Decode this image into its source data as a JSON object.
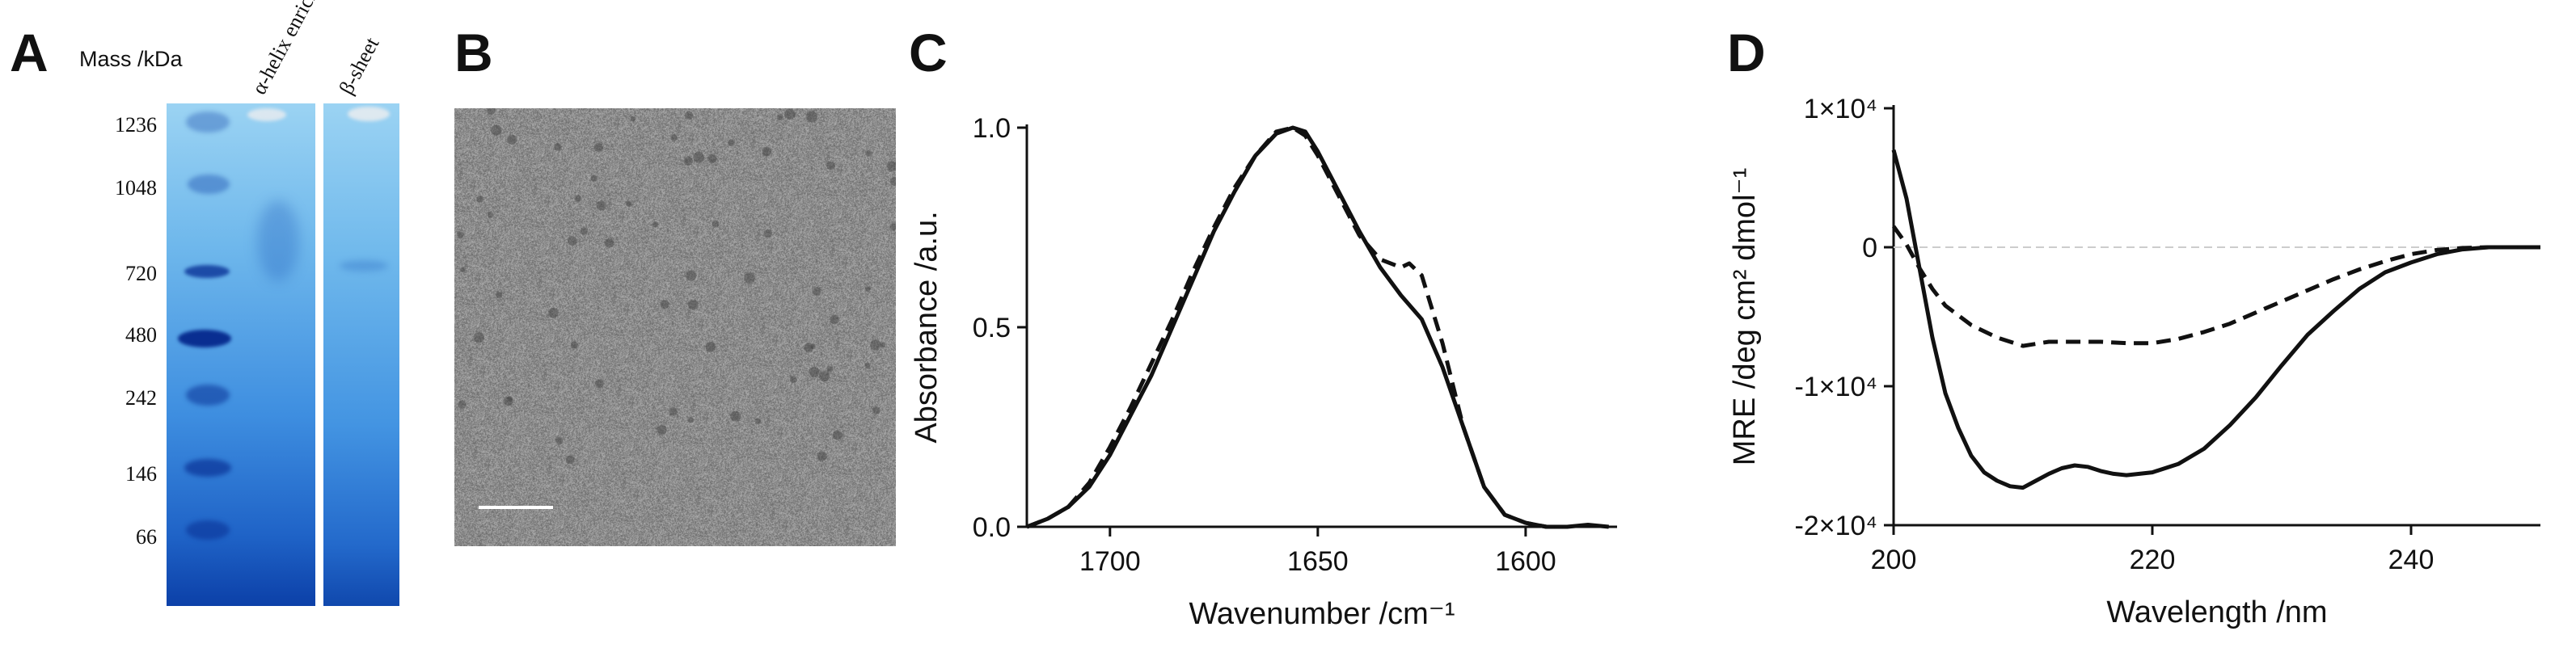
{
  "panels": {
    "a": {
      "letter": "A"
    },
    "b": {
      "letter": "B"
    },
    "c": {
      "letter": "C"
    },
    "d": {
      "letter": "D"
    }
  },
  "gel": {
    "mass_label": "Mass /kDa",
    "markers": [
      "1236",
      "1048",
      "720",
      "480",
      "242",
      "146",
      "66"
    ],
    "lanes": [
      "α-helix enriched",
      "β-sheet"
    ]
  },
  "tem": {
    "has_scale_bar": true
  },
  "chart_data": [
    {
      "panel": "C",
      "type": "line",
      "xlabel": "Wavenumber /cm⁻¹",
      "ylabel": "Absorbance /a.u.",
      "xlim": [
        1720,
        1578
      ],
      "ylim": [
        0,
        1.0
      ],
      "x_reversed": true,
      "xticks": [
        1700,
        1650,
        1600
      ],
      "yticks": [
        0.0,
        0.5,
        1.0
      ],
      "ytick_labels": [
        "0.0",
        "0.5",
        "1.0"
      ],
      "grid": false,
      "series": [
        {
          "style": "solid",
          "x": [
            1720,
            1715,
            1710,
            1705,
            1700,
            1695,
            1690,
            1685,
            1680,
            1675,
            1670,
            1665,
            1660,
            1656,
            1653,
            1650,
            1645,
            1640,
            1635,
            1630,
            1625,
            1620,
            1615,
            1610,
            1605,
            1600,
            1595,
            1590,
            1585,
            1580
          ],
          "y": [
            0.0,
            0.02,
            0.05,
            0.1,
            0.18,
            0.28,
            0.38,
            0.5,
            0.62,
            0.74,
            0.84,
            0.93,
            0.985,
            1.0,
            0.99,
            0.94,
            0.84,
            0.74,
            0.65,
            0.58,
            0.52,
            0.4,
            0.25,
            0.1,
            0.03,
            0.01,
            0.0,
            0.0,
            0.005,
            0.0
          ]
        },
        {
          "style": "dashed",
          "x": [
            1720,
            1715,
            1710,
            1705,
            1700,
            1695,
            1690,
            1685,
            1680,
            1675,
            1670,
            1665,
            1660,
            1656,
            1653,
            1650,
            1645,
            1640,
            1635,
            1630,
            1628,
            1625,
            1620,
            1615,
            1610,
            1605,
            1600,
            1595,
            1590
          ],
          "y": [
            0.0,
            0.02,
            0.05,
            0.11,
            0.2,
            0.3,
            0.41,
            0.52,
            0.64,
            0.75,
            0.85,
            0.93,
            0.99,
            1.0,
            0.98,
            0.93,
            0.83,
            0.73,
            0.67,
            0.65,
            0.66,
            0.63,
            0.46,
            0.25,
            0.1,
            0.03,
            0.01,
            0.0,
            0.0
          ]
        }
      ]
    },
    {
      "panel": "D",
      "type": "line",
      "xlabel": "Wavelength /nm",
      "ylabel": "MRE /deg cm² dmol⁻¹",
      "xlim": [
        200,
        250
      ],
      "ylim": [
        -20000,
        10000
      ],
      "xticks": [
        200,
        220,
        240
      ],
      "yticks": [
        10000,
        0,
        -10000,
        -20000
      ],
      "ytick_labels": [
        "1×10⁴",
        "0",
        "-1×10⁴",
        "-2×10⁴"
      ],
      "zero_line": true,
      "grid": false,
      "series": [
        {
          "style": "solid",
          "x": [
            200,
            201,
            202,
            203,
            204,
            205,
            206,
            207,
            208,
            209,
            210,
            211,
            212,
            213,
            214,
            215,
            216,
            217,
            218,
            219,
            220,
            222,
            224,
            226,
            228,
            230,
            232,
            234,
            236,
            238,
            240,
            242,
            244,
            246,
            248,
            250
          ],
          "y": [
            7000,
            3500,
            -1500,
            -6500,
            -10500,
            -13000,
            -15000,
            -16200,
            -16800,
            -17200,
            -17300,
            -16800,
            -16300,
            -15900,
            -15700,
            -15800,
            -16100,
            -16300,
            -16400,
            -16300,
            -16200,
            -15600,
            -14500,
            -12800,
            -10800,
            -8500,
            -6300,
            -4600,
            -3000,
            -1800,
            -1100,
            -500,
            -150,
            0,
            0,
            0
          ]
        },
        {
          "style": "dashed",
          "x": [
            200,
            201,
            202,
            203,
            204,
            206,
            208,
            210,
            212,
            214,
            216,
            218,
            220,
            222,
            224,
            226,
            228,
            230,
            232,
            234,
            236,
            238,
            240,
            242,
            244,
            246,
            248,
            250
          ],
          "y": [
            1500,
            200,
            -1500,
            -3000,
            -4200,
            -5600,
            -6500,
            -7100,
            -6800,
            -6800,
            -6800,
            -6900,
            -6900,
            -6600,
            -6100,
            -5500,
            -4700,
            -3900,
            -3100,
            -2300,
            -1600,
            -1000,
            -500,
            -200,
            -50,
            0,
            0,
            0
          ]
        }
      ]
    }
  ]
}
